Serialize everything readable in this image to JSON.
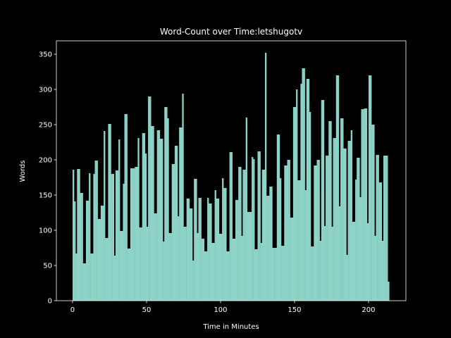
{
  "chart_data": {
    "type": "bar",
    "title": "Word-Count over Time:letshugotv",
    "xlabel": "Time in Minutes",
    "ylabel": "Words",
    "color": "#8dd3c7",
    "x": [
      0,
      1,
      2,
      3,
      4,
      5,
      6,
      7,
      8,
      9,
      10,
      11,
      12,
      13,
      14,
      15,
      16,
      17,
      18,
      19,
      20,
      21,
      22,
      23,
      24,
      25,
      26,
      27,
      28,
      29,
      30,
      31,
      32,
      33,
      34,
      35,
      36,
      37,
      38,
      39,
      40,
      41,
      42,
      43,
      44,
      45,
      46,
      47,
      48,
      49,
      50,
      51,
      52,
      53,
      54,
      55,
      56,
      57,
      58,
      59,
      60,
      61,
      62,
      63,
      64,
      65,
      66,
      67,
      68,
      69,
      70,
      71,
      72,
      73,
      74,
      75,
      76,
      77,
      78,
      79,
      80,
      81,
      82,
      83,
      84,
      85,
      86,
      87,
      88,
      89,
      90,
      91,
      92,
      93,
      94,
      95,
      96,
      97,
      98,
      99,
      100,
      101,
      102,
      103,
      104,
      105,
      106,
      107,
      108,
      109,
      110,
      111,
      112,
      113,
      114,
      115,
      116,
      117,
      118,
      119,
      120,
      121,
      122,
      123,
      124,
      125,
      126,
      127,
      128,
      129,
      130,
      131,
      132,
      133,
      134,
      135,
      136,
      137,
      138,
      139,
      140,
      141,
      142,
      143,
      144,
      145,
      146,
      147,
      148,
      149,
      150,
      151,
      152,
      153,
      154,
      155,
      156,
      157,
      158,
      159,
      160,
      161,
      162,
      163,
      164,
      165,
      166,
      167,
      168,
      169,
      170,
      171,
      172,
      173,
      174,
      175,
      176,
      177,
      178,
      179,
      180,
      181,
      182,
      183,
      184,
      185,
      186,
      187,
      188,
      189,
      190,
      191,
      192,
      193,
      194,
      195,
      196,
      197,
      198,
      199,
      200,
      201,
      202,
      203,
      204,
      205,
      206,
      207,
      208,
      209,
      210,
      211,
      212,
      213
    ],
    "values": [
      186,
      141,
      67,
      187,
      187,
      153,
      153,
      53,
      53,
      142,
      142,
      181,
      67,
      67,
      180,
      199,
      199,
      116,
      116,
      135,
      135,
      241,
      89,
      89,
      251,
      251,
      180,
      180,
      64,
      185,
      185,
      229,
      99,
      99,
      166,
      265,
      265,
      74,
      74,
      188,
      188,
      188,
      190,
      190,
      231,
      104,
      104,
      238,
      238,
      209,
      105,
      290,
      290,
      248,
      248,
      124,
      124,
      242,
      242,
      230,
      230,
      84,
      275,
      275,
      259,
      96,
      96,
      194,
      194,
      220,
      220,
      120,
      246,
      246,
      294,
      105,
      105,
      145,
      145,
      131,
      131,
      57,
      173,
      173,
      96,
      146,
      146,
      88,
      88,
      70,
      70,
      146,
      138,
      138,
      82,
      82,
      157,
      145,
      145,
      95,
      95,
      174,
      160,
      160,
      70,
      70,
      211,
      211,
      88,
      88,
      143,
      143,
      190,
      190,
      92,
      186,
      186,
      260,
      126,
      126,
      126,
      204,
      201,
      73,
      73,
      212,
      212,
      82,
      186,
      186,
      352,
      149,
      149,
      162,
      162,
      75,
      75,
      75,
      236,
      236,
      174,
      78,
      78,
      192,
      192,
      200,
      200,
      118,
      118,
      275,
      275,
      300,
      171,
      171,
      308,
      330,
      330,
      157,
      315,
      315,
      268,
      77,
      77,
      192,
      192,
      200,
      200,
      85,
      285,
      285,
      106,
      206,
      206,
      255,
      255,
      105,
      231,
      231,
      320,
      320,
      134,
      259,
      259,
      216,
      216,
      65,
      227,
      227,
      242,
      112,
      112,
      172,
      203,
      203,
      147,
      272,
      272,
      273,
      273,
      110,
      320,
      320,
      250,
      250,
      92,
      207,
      207,
      168,
      168,
      85,
      206,
      206,
      206,
      27
    ],
    "xlim": [
      -10.95,
      225.25
    ],
    "ylim": [
      0,
      369
    ],
    "xticks": [
      0,
      50,
      100,
      150,
      200
    ],
    "yticks": [
      0,
      50,
      100,
      150,
      200,
      250,
      300,
      350
    ]
  }
}
